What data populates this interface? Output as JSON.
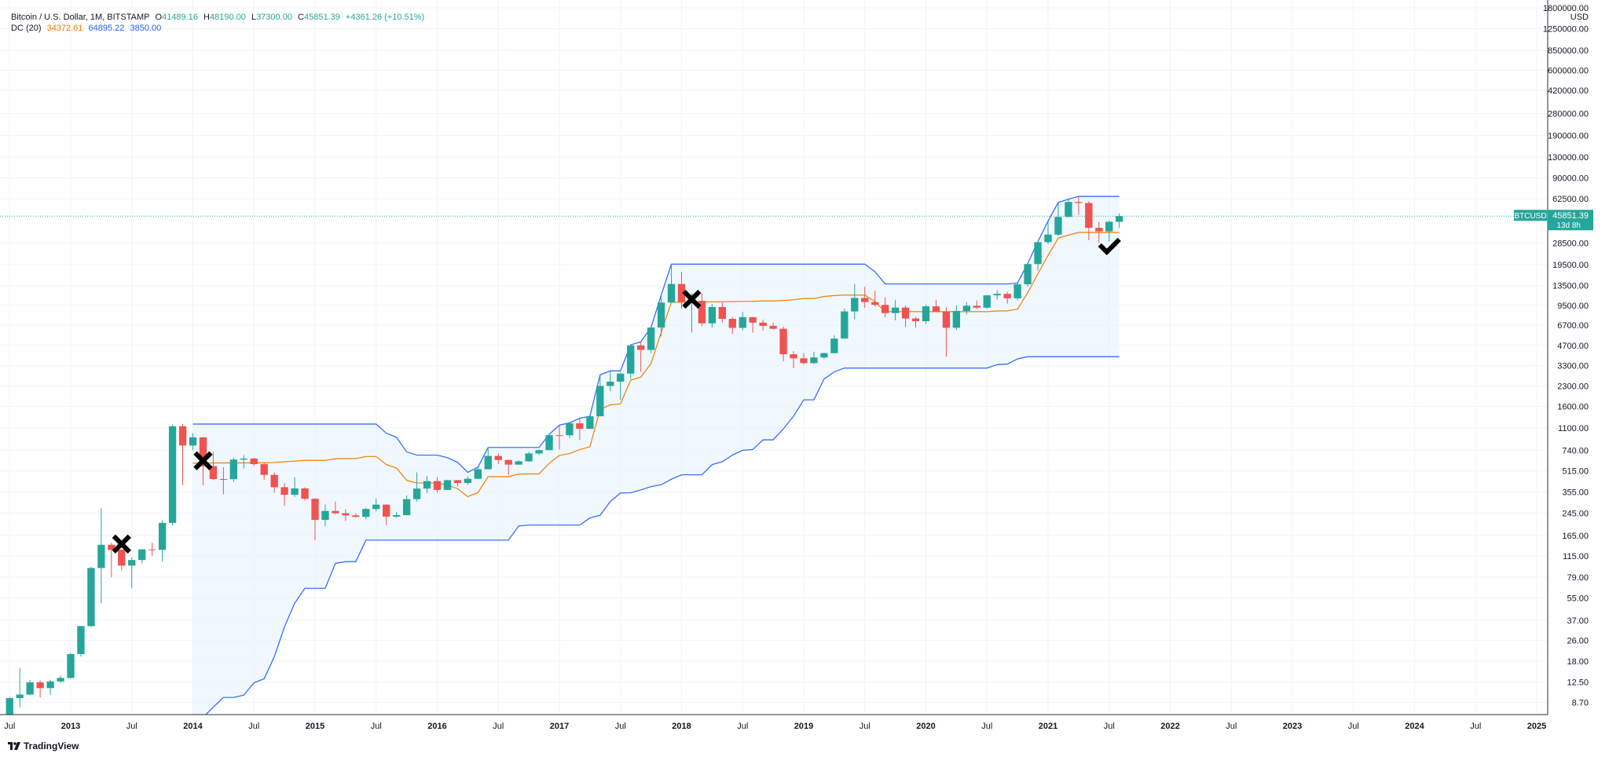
{
  "legend": {
    "symbol": "Bitcoin / U.S. Dollar, 1M, BITSTAMP",
    "o_label": "O",
    "o_value": "41489.16",
    "h_label": "H",
    "h_value": "48190.00",
    "l_label": "L",
    "l_value": "37300.00",
    "c_label": "C",
    "c_value": "45851.39",
    "change": "+4361.26 (+10.51%)",
    "dc_label": "DC (20)",
    "dc_mid": "34372.61",
    "dc_upper": "64895.22",
    "dc_lower": "3850.00"
  },
  "price_tag": {
    "symbol": "BTCUSD",
    "value": "45851.39",
    "countdown": "13d 8h"
  },
  "brand": "TradingView",
  "colors": {
    "up": "#26a69a",
    "down": "#ef5350",
    "upper": "#2962ff",
    "basis": "#f57c00",
    "fill": "#e3f2fd"
  },
  "chart_data": {
    "type": "candlestick",
    "y_scale": "log",
    "y_currency": "USD",
    "y_ticks": [
      8.7,
      12.5,
      18,
      26,
      37,
      55,
      79,
      115,
      165,
      245,
      355,
      515,
      740,
      1100,
      1600,
      2300,
      3300,
      4700,
      6700,
      9500,
      13500,
      19500,
      28500,
      45851.39,
      62500,
      90000,
      130000,
      190000,
      280000,
      420000,
      600000,
      850000,
      1250000,
      1800000
    ],
    "y_tick_labels": [
      "8.70",
      "12.50",
      "18.00",
      "26.00",
      "37.00",
      "55.00",
      "79.00",
      "115.00",
      "165.00",
      "245.00",
      "355.00",
      "515.00",
      "740.00",
      "1100.00",
      "1600.00",
      "2300.00",
      "3300.00",
      "4700.00",
      "6700.00",
      "9500.00",
      "13500.00",
      "19500.00",
      "28500.00",
      "45851.39",
      "62500.00",
      "90000.00",
      "130000.00",
      "190000.00",
      "280000.00",
      "420000.00",
      "600000.00",
      "850000.00",
      "1250000.00",
      "1800000.00"
    ],
    "x_ticks": [
      {
        "date": "2012-07",
        "label": "Jul",
        "bold": false
      },
      {
        "date": "2013-01",
        "label": "2013",
        "bold": true
      },
      {
        "date": "2013-07",
        "label": "Jul",
        "bold": false
      },
      {
        "date": "2014-01",
        "label": "2014",
        "bold": true
      },
      {
        "date": "2014-07",
        "label": "Jul",
        "bold": false
      },
      {
        "date": "2015-01",
        "label": "2015",
        "bold": true
      },
      {
        "date": "2015-07",
        "label": "Jul",
        "bold": false
      },
      {
        "date": "2016-01",
        "label": "2016",
        "bold": true
      },
      {
        "date": "2016-07",
        "label": "Jul",
        "bold": false
      },
      {
        "date": "2017-01",
        "label": "2017",
        "bold": true
      },
      {
        "date": "2017-07",
        "label": "Jul",
        "bold": false
      },
      {
        "date": "2018-01",
        "label": "2018",
        "bold": true
      },
      {
        "date": "2018-07",
        "label": "Jul",
        "bold": false
      },
      {
        "date": "2019-01",
        "label": "2019",
        "bold": true
      },
      {
        "date": "2019-07",
        "label": "Jul",
        "bold": false
      },
      {
        "date": "2020-01",
        "label": "2020",
        "bold": true
      },
      {
        "date": "2020-07",
        "label": "Jul",
        "bold": false
      },
      {
        "date": "2021-01",
        "label": "2021",
        "bold": true
      },
      {
        "date": "2021-07",
        "label": "Jul",
        "bold": false
      },
      {
        "date": "2022-01",
        "label": "2022",
        "bold": true
      },
      {
        "date": "2022-07",
        "label": "Jul",
        "bold": false
      },
      {
        "date": "2023-01",
        "label": "2023",
        "bold": true
      },
      {
        "date": "2023-07",
        "label": "Jul",
        "bold": false
      },
      {
        "date": "2024-01",
        "label": "2024",
        "bold": true
      },
      {
        "date": "2024-07",
        "label": "Jul",
        "bold": false
      },
      {
        "date": "2025-01",
        "label": "2025",
        "bold": true
      }
    ],
    "x_range": [
      "2012-06",
      "2025-03"
    ],
    "y_range": [
      7,
      2000000
    ],
    "candles": [
      [
        "2012-06",
        7,
        7.6,
        5.5,
        6.7
      ],
      [
        "2012-07",
        6.7,
        9.6,
        6.7,
        9.4
      ],
      [
        "2012-08",
        9.4,
        16,
        8,
        10
      ],
      [
        "2012-09",
        10,
        12.9,
        9.9,
        12.4
      ],
      [
        "2012-10",
        12.4,
        12.8,
        9.5,
        11.2
      ],
      [
        "2012-11",
        11.2,
        12.9,
        9.9,
        12.6
      ],
      [
        "2012-12",
        12.6,
        14,
        12.3,
        13.4
      ],
      [
        "2013-01",
        13.4,
        20.9,
        13.2,
        20.4
      ],
      [
        "2013-02",
        20.4,
        33.5,
        19.5,
        33.4
      ],
      [
        "2013-03",
        33.4,
        95,
        33,
        93
      ],
      [
        "2013-04",
        93,
        266,
        50,
        140
      ],
      [
        "2013-05",
        140,
        145,
        79,
        128
      ],
      [
        "2013-06",
        128,
        130,
        89,
        97
      ],
      [
        "2013-07",
        97,
        112,
        65,
        107
      ],
      [
        "2013-08",
        107,
        130,
        101,
        129
      ],
      [
        "2013-09",
        129,
        145,
        115,
        128
      ],
      [
        "2013-10",
        128,
        215,
        104,
        206
      ],
      [
        "2013-11",
        206,
        1163,
        196,
        1130
      ],
      [
        "2013-12",
        1130,
        1175,
        400,
        805
      ],
      [
        "2014-01",
        805,
        1000,
        740,
        930
      ],
      [
        "2014-02",
        930,
        930,
        400,
        560
      ],
      [
        "2014-03",
        560,
        720,
        440,
        446
      ],
      [
        "2014-04",
        446,
        550,
        340,
        445
      ],
      [
        "2014-05",
        445,
        650,
        424,
        628
      ],
      [
        "2014-06",
        628,
        680,
        538,
        640
      ],
      [
        "2014-07",
        640,
        650,
        565,
        580
      ],
      [
        "2014-08",
        580,
        600,
        440,
        480
      ],
      [
        "2014-09",
        480,
        500,
        350,
        386
      ],
      [
        "2014-10",
        386,
        415,
        278,
        338
      ],
      [
        "2014-11",
        338,
        460,
        325,
        378
      ],
      [
        "2014-12",
        378,
        386,
        305,
        315
      ],
      [
        "2015-01",
        315,
        318,
        152,
        217
      ],
      [
        "2015-02",
        217,
        285,
        195,
        254
      ],
      [
        "2015-03",
        254,
        300,
        240,
        244
      ],
      [
        "2015-04",
        244,
        262,
        213,
        235
      ],
      [
        "2015-05",
        235,
        244,
        227,
        229
      ],
      [
        "2015-06",
        229,
        268,
        220,
        263
      ],
      [
        "2015-07",
        263,
        316,
        252,
        284
      ],
      [
        "2015-08",
        284,
        286,
        198,
        230
      ],
      [
        "2015-09",
        230,
        250,
        225,
        236
      ],
      [
        "2015-10",
        236,
        334,
        235,
        313
      ],
      [
        "2015-11",
        313,
        502,
        300,
        377
      ],
      [
        "2015-12",
        377,
        470,
        349,
        430
      ],
      [
        "2016-01",
        430,
        462,
        350,
        368
      ],
      [
        "2016-02",
        368,
        440,
        368,
        437
      ],
      [
        "2016-03",
        437,
        440,
        390,
        416
      ],
      [
        "2016-04",
        416,
        467,
        403,
        448
      ],
      [
        "2016-05",
        448,
        550,
        445,
        530
      ],
      [
        "2016-06",
        530,
        778,
        530,
        670
      ],
      [
        "2016-07",
        670,
        700,
        580,
        624
      ],
      [
        "2016-08",
        624,
        630,
        480,
        575
      ],
      [
        "2016-09",
        575,
        620,
        575,
        609
      ],
      [
        "2016-10",
        609,
        720,
        605,
        700
      ],
      [
        "2016-11",
        700,
        750,
        680,
        742
      ],
      [
        "2016-12",
        742,
        980,
        740,
        966
      ],
      [
        "2017-01",
        966,
        1155,
        750,
        965
      ],
      [
        "2017-02",
        965,
        1200,
        920,
        1190
      ],
      [
        "2017-03",
        1190,
        1300,
        890,
        1080
      ],
      [
        "2017-04",
        1080,
        1350,
        1080,
        1348
      ],
      [
        "2017-05",
        1348,
        2800,
        1348,
        2300
      ],
      [
        "2017-06",
        2300,
        3000,
        2100,
        2480
      ],
      [
        "2017-07",
        2480,
        2900,
        1800,
        2860
      ],
      [
        "2017-08",
        2860,
        4750,
        2600,
        4700
      ],
      [
        "2017-09",
        4700,
        5000,
        2950,
        4340
      ],
      [
        "2017-10",
        4340,
        6450,
        4100,
        6440
      ],
      [
        "2017-11",
        6440,
        11400,
        5500,
        10000
      ],
      [
        "2017-12",
        10000,
        19666,
        10000,
        13860
      ],
      [
        "2018-01",
        13860,
        17200,
        9000,
        10100
      ],
      [
        "2018-02",
        10100,
        11780,
        5900,
        10300
      ],
      [
        "2018-03",
        10300,
        11700,
        6600,
        6930
      ],
      [
        "2018-04",
        6930,
        9750,
        6430,
        9240
      ],
      [
        "2018-05",
        9240,
        9990,
        7030,
        7500
      ],
      [
        "2018-06",
        7500,
        7750,
        5750,
        6400
      ],
      [
        "2018-07",
        6400,
        8500,
        6100,
        7730
      ],
      [
        "2018-08",
        7730,
        7760,
        5880,
        7020
      ],
      [
        "2018-09",
        7020,
        7400,
        6100,
        6630
      ],
      [
        "2018-10",
        6630,
        7000,
        6200,
        6300
      ],
      [
        "2018-11",
        6300,
        6550,
        3560,
        4020
      ],
      [
        "2018-12",
        4020,
        4250,
        3150,
        3740
      ],
      [
        "2019-01",
        3740,
        4100,
        3350,
        3440
      ],
      [
        "2019-02",
        3440,
        4200,
        3380,
        3800
      ],
      [
        "2019-03",
        3800,
        4140,
        3700,
        4100
      ],
      [
        "2019-04",
        4100,
        5600,
        4080,
        5300
      ],
      [
        "2019-05",
        5300,
        9000,
        5300,
        8550
      ],
      [
        "2019-06",
        8550,
        13880,
        7430,
        10850
      ],
      [
        "2019-07",
        10850,
        13200,
        9100,
        10080
      ],
      [
        "2019-08",
        10080,
        12300,
        9300,
        9600
      ],
      [
        "2019-09",
        9600,
        10930,
        7700,
        8300
      ],
      [
        "2019-10",
        8300,
        10500,
        7300,
        9150
      ],
      [
        "2019-11",
        9150,
        9500,
        6500,
        7550
      ],
      [
        "2019-12",
        7550,
        7750,
        6430,
        7200
      ],
      [
        "2020-01",
        7200,
        9580,
        6850,
        9350
      ],
      [
        "2020-02",
        9350,
        10500,
        8450,
        8520
      ],
      [
        "2020-03",
        8520,
        9200,
        3850,
        6410
      ],
      [
        "2020-04",
        6410,
        9460,
        6150,
        8620
      ],
      [
        "2020-05",
        8620,
        10070,
        8100,
        9450
      ],
      [
        "2020-06",
        9450,
        10400,
        8900,
        9135
      ],
      [
        "2020-07",
        9135,
        11450,
        8950,
        11350
      ],
      [
        "2020-08",
        11350,
        12480,
        10530,
        11650
      ],
      [
        "2020-09",
        11650,
        12080,
        9820,
        10780
      ],
      [
        "2020-10",
        10780,
        14100,
        10380,
        13800
      ],
      [
        "2020-11",
        13800,
        19900,
        13200,
        19700
      ],
      [
        "2020-12",
        19700,
        29300,
        17600,
        28990
      ],
      [
        "2021-01",
        28990,
        41990,
        28100,
        33110
      ],
      [
        "2021-02",
        33110,
        58350,
        32300,
        45200
      ],
      [
        "2021-03",
        45200,
        61800,
        44950,
        58800
      ],
      [
        "2021-04",
        58800,
        64895,
        47000,
        57800
      ],
      [
        "2021-05",
        57800,
        59500,
        30000,
        37300
      ],
      [
        "2021-06",
        37300,
        41300,
        28800,
        35000
      ],
      [
        "2021-07",
        35000,
        42300,
        29300,
        41489
      ],
      [
        "2021-08",
        41489,
        48190,
        37300,
        45851
      ]
    ],
    "donchian": {
      "period": 20,
      "upper_color": "#2962ff",
      "lower_color": "#2962ff",
      "basis_color": "#f57c00"
    },
    "annotations": [
      {
        "type": "cross",
        "date": "2013-06",
        "price": 142
      },
      {
        "type": "cross",
        "date": "2014-02",
        "price": 615
      },
      {
        "type": "cross",
        "date": "2018-02",
        "price": 10600
      },
      {
        "type": "check",
        "date": "2021-07",
        "price": 26500
      }
    ]
  }
}
